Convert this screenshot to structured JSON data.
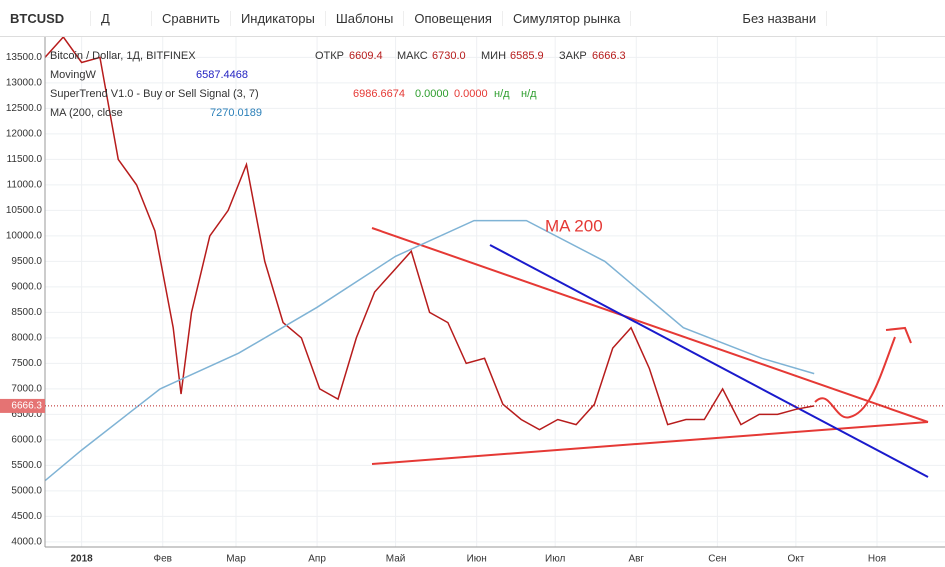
{
  "toolbar": {
    "symbol": "BTCUSD",
    "interval": "Д",
    "items": [
      "Сравнить",
      "Индикаторы",
      "Шаблоны",
      "Оповещения",
      "Симулятор рынка"
    ],
    "layout_name": "Без названи"
  },
  "legend": {
    "title": "Bitcoin / Dollar, 1Д, BITFINEX",
    "ohlc": [
      {
        "label": "ОТКР",
        "value": "6609.4"
      },
      {
        "label": "МАКС",
        "value": "6730.0"
      },
      {
        "label": "МИН",
        "value": "6585.9"
      },
      {
        "label": "ЗАКР",
        "value": "6666.3"
      }
    ],
    "indicators": [
      {
        "name": "MovingW",
        "values": [
          "6587.4468"
        ]
      },
      {
        "name": "SuperTrend V1.0 - Buy or Sell Signal (3, 7)",
        "values": [
          "6986.6674",
          "0.0000",
          "0.0000",
          "н/д",
          "н/д"
        ]
      },
      {
        "name": "MA (200, close",
        "values": [
          "7270.0189"
        ]
      }
    ]
  },
  "chart_data": {
    "type": "line",
    "annotation": "MA 200",
    "last_price": 6666.3,
    "xlim": [
      -14,
      330
    ],
    "ylim": [
      3900,
      13900
    ],
    "xticks": [
      {
        "value": 0,
        "label": "2018"
      },
      {
        "value": 31,
        "label": "Фев"
      },
      {
        "value": 59,
        "label": "Мар"
      },
      {
        "value": 90,
        "label": "Апр"
      },
      {
        "value": 120,
        "label": "Май"
      },
      {
        "value": 151,
        "label": "Июн"
      },
      {
        "value": 181,
        "label": "Июл"
      },
      {
        "value": 212,
        "label": "Авг"
      },
      {
        "value": 243,
        "label": "Сен"
      },
      {
        "value": 273,
        "label": "Окт"
      },
      {
        "value": 304,
        "label": "Ноя"
      }
    ],
    "yticks": [
      {
        "value": 4000,
        "label": "4000.0"
      },
      {
        "value": 4500,
        "label": "4500.0"
      },
      {
        "value": 5000,
        "label": "5000.0"
      },
      {
        "value": 5500,
        "label": "5500.0"
      },
      {
        "value": 6000,
        "label": "6000.0"
      },
      {
        "value": 6500,
        "label": "6500.0"
      },
      {
        "value": 7000,
        "label": "7000.0"
      },
      {
        "value": 7500,
        "label": "7500.0"
      },
      {
        "value": 8000,
        "label": "8000.0"
      },
      {
        "value": 8500,
        "label": "8500.0"
      },
      {
        "value": 9000,
        "label": "9000.0"
      },
      {
        "value": 9500,
        "label": "9500.0"
      },
      {
        "value": 10000,
        "label": "10000.0"
      },
      {
        "value": 10500,
        "label": "10500.0"
      },
      {
        "value": 11000,
        "label": "11000.0"
      },
      {
        "value": 11500,
        "label": "11500.0"
      },
      {
        "value": 12000,
        "label": "12000.0"
      },
      {
        "value": 12500,
        "label": "12500.0"
      },
      {
        "value": 13000,
        "label": "13000.0"
      },
      {
        "value": 13500,
        "label": "13500.0"
      }
    ],
    "grid": true,
    "series": [
      {
        "color": "#b71c1c",
        "x": [
          -14,
          -7,
          0,
          7,
          14,
          21,
          28,
          35,
          38,
          42,
          49,
          56,
          63,
          70,
          77,
          84,
          91,
          98,
          105,
          112,
          119,
          126,
          133,
          140,
          147,
          154,
          161,
          168,
          175,
          182,
          189,
          196,
          203,
          210,
          217,
          224,
          231,
          238,
          245,
          252,
          259,
          266,
          273,
          280
        ],
        "values": [
          13500,
          13900,
          13400,
          13500,
          11500,
          11000,
          10100,
          8200,
          6900,
          8500,
          10000,
          10500,
          11400,
          9500,
          8300,
          8000,
          7000,
          6800,
          8000,
          8900,
          9300,
          9700,
          8500,
          8300,
          7500,
          7600,
          6700,
          6400,
          6200,
          6400,
          6300,
          6700,
          7800,
          8200,
          7400,
          6300,
          6400,
          6400,
          7000,
          6300,
          6500,
          6500,
          6600,
          6666.3
        ]
      },
      {
        "name": "MA (200, close",
        "color": "#7fb3d5",
        "x": [
          -14,
          0,
          30,
          60,
          90,
          120,
          150,
          170,
          200,
          230,
          260,
          280
        ],
        "values": [
          5200,
          5800,
          7000,
          7700,
          8600,
          9600,
          10300,
          10300,
          9500,
          8200,
          7600,
          7300
        ]
      }
    ]
  }
}
